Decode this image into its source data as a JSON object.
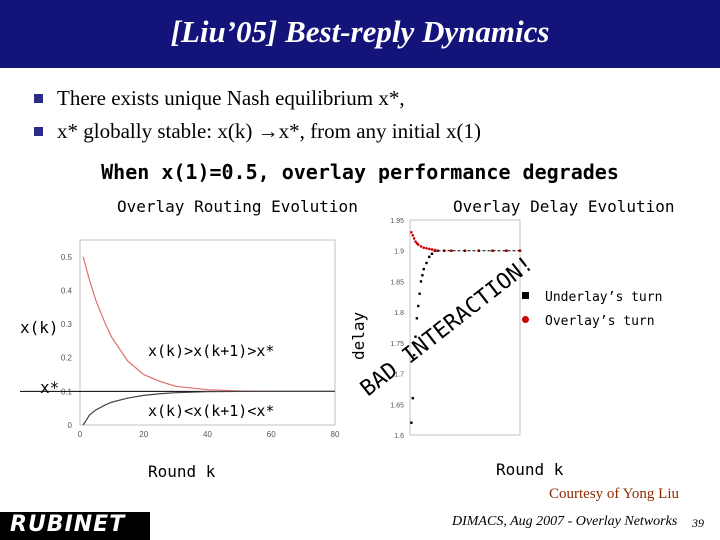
{
  "title": "[Liu’05] Best-reply Dynamics",
  "bullets": [
    "There exists unique Nash equilibrium x*,",
    "x* globally stable: x(k) →x*, from any initial x(1)"
  ],
  "subheading": "When x(1)=0.5, overlay performance degrades",
  "left_chart": {
    "title": "Overlay Routing Evolution",
    "xlabel": "Round k",
    "ylabel": "x(k)",
    "equilibrium_label": "x*",
    "upper_label": "x(k)>x(k+1)>x*",
    "lower_label": "x(k)<x(k+1)<x*",
    "x_ticks": [
      "0",
      "20",
      "40",
      "60",
      "80"
    ],
    "y_ticks": [
      "0",
      "0.1",
      "0.2",
      "0.3",
      "0.4",
      "0.5"
    ]
  },
  "right_chart": {
    "title": "Overlay Delay Evolution",
    "xlabel": "Round k",
    "ylabel": "delay",
    "annotation": "BAD INTERACTION!",
    "y_ticks": [
      "1.6",
      "1.65",
      "1.7",
      "1.75",
      "1.8",
      "1.85",
      "1.9",
      "1.95"
    ],
    "legend": [
      {
        "label": "Underlay’s turn",
        "marker": "square",
        "color": "#000000"
      },
      {
        "label": "Overlay’s turn",
        "marker": "circle",
        "color": "#cc0000"
      }
    ]
  },
  "credit": "Courtesy of Yong Liu",
  "footer": {
    "logo": "RUBINET",
    "venue": "DIMACS, Aug 2007 - Overlay Networks",
    "page": "39"
  },
  "chart_data": [
    {
      "type": "line",
      "title": "Overlay Routing Evolution",
      "xlabel": "Round k",
      "ylabel": "x(k)",
      "xlim": [
        0,
        80
      ],
      "ylim": [
        0,
        0.55
      ],
      "series": [
        {
          "name": "x(k)>x(k+1)>x*",
          "x": [
            1,
            3,
            5,
            8,
            10,
            15,
            20,
            25,
            30,
            40,
            50,
            60,
            70,
            80
          ],
          "values": [
            0.5,
            0.43,
            0.37,
            0.3,
            0.26,
            0.19,
            0.15,
            0.13,
            0.115,
            0.105,
            0.101,
            0.1,
            0.1,
            0.1
          ]
        },
        {
          "name": "x(k)<x(k+1)<x*",
          "x": [
            1,
            3,
            5,
            8,
            10,
            15,
            20,
            25,
            30,
            40,
            50,
            60,
            70,
            80
          ],
          "values": [
            0.0,
            0.03,
            0.045,
            0.06,
            0.068,
            0.08,
            0.088,
            0.093,
            0.096,
            0.099,
            0.1,
            0.1,
            0.1,
            0.1
          ]
        }
      ],
      "equilibrium": 0.1
    },
    {
      "type": "scatter",
      "title": "Overlay Delay Evolution",
      "xlabel": "Round k",
      "ylabel": "delay",
      "ylim": [
        1.6,
        1.95
      ],
      "series": [
        {
          "name": "Underlay’s turn",
          "x": [
            1,
            2,
            3,
            4,
            5,
            6,
            7,
            8,
            9,
            10,
            12,
            14,
            16,
            18,
            20,
            25,
            30,
            40,
            50,
            60,
            70,
            80
          ],
          "values": [
            1.62,
            1.66,
            1.73,
            1.76,
            1.79,
            1.81,
            1.83,
            1.85,
            1.86,
            1.87,
            1.88,
            1.89,
            1.895,
            1.9,
            1.9,
            1.9,
            1.9,
            1.9,
            1.9,
            1.9,
            1.9,
            1.9
          ]
        },
        {
          "name": "Overlay’s turn",
          "x": [
            1,
            2,
            3,
            4,
            5,
            6,
            8,
            10,
            12,
            14,
            16,
            18,
            20,
            25,
            30,
            40,
            50,
            60,
            70,
            80
          ],
          "values": [
            1.93,
            1.925,
            1.92,
            1.915,
            1.912,
            1.91,
            1.907,
            1.905,
            1.904,
            1.903,
            1.902,
            1.901,
            1.9,
            1.9,
            1.9,
            1.9,
            1.9,
            1.9,
            1.9,
            1.9
          ]
        }
      ]
    }
  ]
}
